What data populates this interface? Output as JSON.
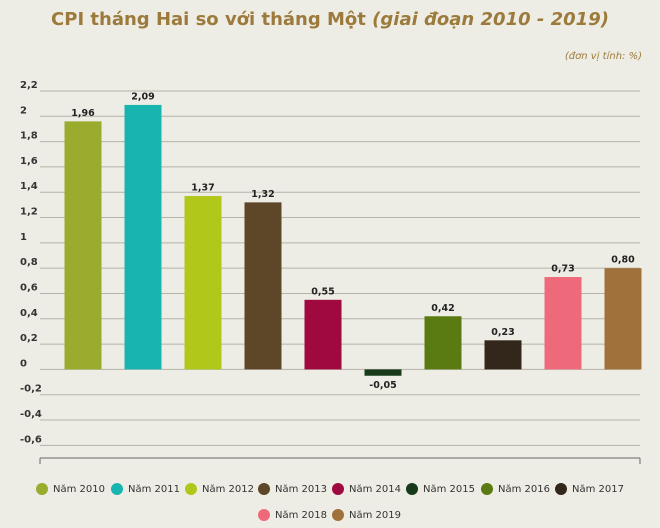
{
  "chart_data": {
    "type": "bar",
    "title": "CPI tháng Hai so với tháng Một",
    "title_italic": "(giai đoạn 2010 - 2019)",
    "unit": "(đơn vị tính: %)",
    "categories": [
      "Năm 2010",
      "Năm 2011",
      "Năm 2012",
      "Năm 2013",
      "Năm 2014",
      "Năm 2015",
      "Năm 2016",
      "Năm 2017",
      "Năm 2018",
      "Năm 2019"
    ],
    "values": [
      1.96,
      2.09,
      1.37,
      1.32,
      0.55,
      -0.05,
      0.42,
      0.23,
      0.73,
      0.8
    ],
    "value_labels": [
      "1,96",
      "2,09",
      "1,37",
      "1,32",
      "0,55",
      "-0,05",
      "0,42",
      "0,23",
      "0,73",
      "0,80"
    ],
    "colors": [
      "#9aab2e",
      "#18b5b0",
      "#b1c81a",
      "#5e4629",
      "#a0093f",
      "#163a1a",
      "#5a7a12",
      "#33261a",
      "#ee6a7a",
      "#a0713a"
    ],
    "ylim": [
      -0.7,
      2.2
    ],
    "yticks": [
      {
        "value": 2.2,
        "label": "2,2"
      },
      2,
      {
        "value": 1.8,
        "label": "1,8"
      },
      {
        "value": 1.6,
        "label": "1,6"
      },
      {
        "value": 1.4,
        "label": "1,4"
      },
      {
        "value": 1.2,
        "label": "1,2"
      },
      1,
      {
        "value": 0.8,
        "label": "0,8"
      },
      {
        "value": 0.6,
        "label": "0,6"
      },
      {
        "value": 0.4,
        "label": "0,4"
      },
      {
        "value": 0.2,
        "label": "0,2"
      },
      0,
      {
        "value": -0.2,
        "label": "-0,2"
      },
      {
        "value": -0.4,
        "label": "-0,4"
      },
      {
        "value": -0.6,
        "label": "-0,6"
      }
    ],
    "grid": true
  }
}
